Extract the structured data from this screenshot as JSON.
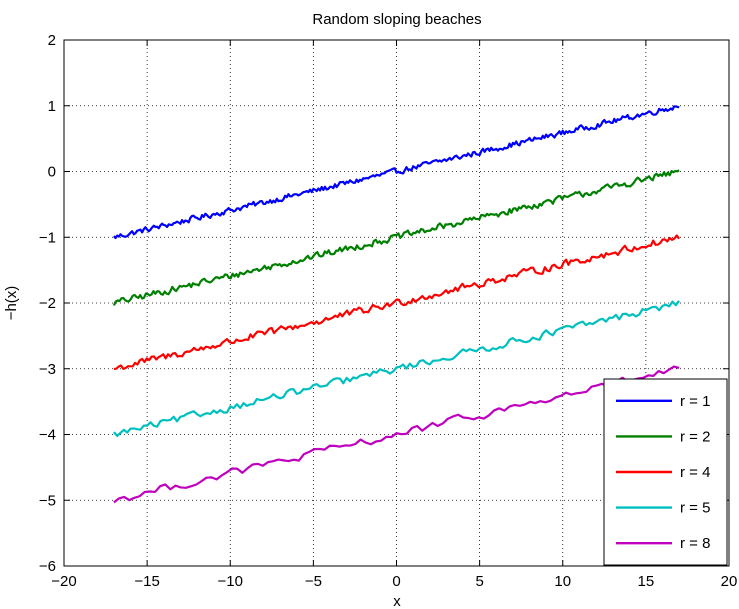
{
  "chart_data": {
    "type": "line",
    "title": "Random sloping beaches",
    "xlabel": "x",
    "ylabel": "−h(x)",
    "xlim": [
      -20,
      20
    ],
    "ylim": [
      -6,
      2
    ],
    "xticks": [
      -20,
      -15,
      -10,
      -5,
      0,
      5,
      10,
      15,
      20
    ],
    "yticks": [
      -6,
      -5,
      -4,
      -3,
      -2,
      -1,
      0,
      1,
      2
    ],
    "xtick_labels": [
      "−20",
      "−15",
      "−10",
      "−5",
      "0",
      "5",
      "10",
      "15",
      "20"
    ],
    "ytick_labels": [
      "−6",
      "−5",
      "−4",
      "−3",
      "−2",
      "−1",
      "0",
      "1",
      "2"
    ],
    "grid": true,
    "legend_position": "bottom-right",
    "series": [
      {
        "name": "r = 1",
        "color": "#0000ff",
        "x": [
          -17,
          17
        ],
        "y": [
          -1.0,
          1.0
        ]
      },
      {
        "name": "r = 2",
        "color": "#008000",
        "x": [
          -17,
          17
        ],
        "y": [
          -2.0,
          0.0
        ]
      },
      {
        "name": "r = 4",
        "color": "#ff0000",
        "x": [
          -17,
          17
        ],
        "y": [
          -3.0,
          -1.0
        ]
      },
      {
        "name": "r = 5",
        "color": "#00bfbf",
        "x": [
          -17,
          17
        ],
        "y": [
          -4.0,
          -2.0
        ]
      },
      {
        "name": "r = 8",
        "color": "#bf00bf",
        "x": [
          -17,
          17
        ],
        "y": [
          -5.0,
          -3.0
        ]
      }
    ]
  }
}
